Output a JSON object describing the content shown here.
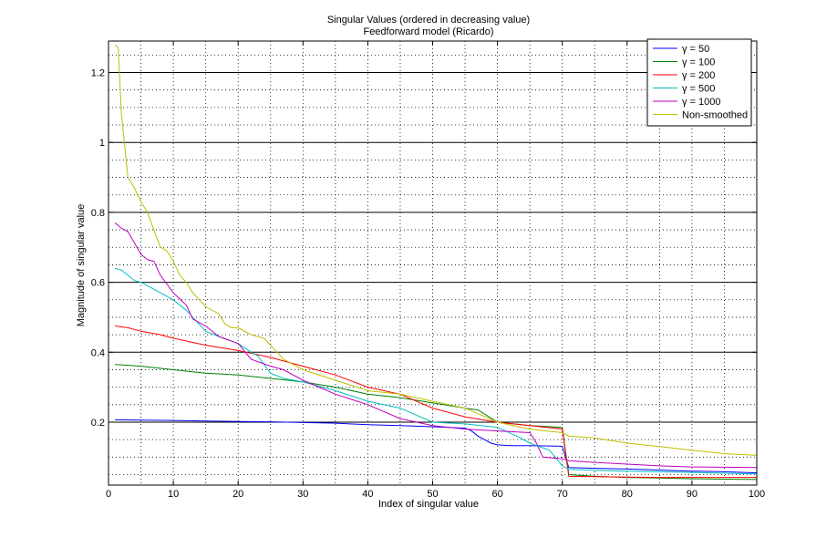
{
  "chart_data": {
    "type": "line",
    "title": "Singular Values (ordered in decreasing value)",
    "subtitle": "Feedforward model (Ricardo)",
    "xlabel": "Index of singular value",
    "ylabel": "Magnitude of singular value",
    "xlim": [
      0,
      100
    ],
    "ylim": [
      0.02,
      1.29
    ],
    "xticks": [
      0,
      10,
      20,
      30,
      40,
      50,
      60,
      70,
      80,
      90,
      100
    ],
    "yticks": [
      0.2,
      0.4,
      0.6,
      0.8,
      1,
      1.2
    ],
    "ytick_labels": [
      "0.2",
      "0.4",
      "0.6",
      "0.8",
      "1",
      "1.2"
    ],
    "grid": "major solid (y) and minor dotted",
    "legend_position": "top-right",
    "series": [
      {
        "name": "γ = 50",
        "color": "#0000ff",
        "x": [
          1,
          5,
          10,
          15,
          20,
          25,
          30,
          35,
          40,
          45,
          50,
          55,
          56,
          57,
          59,
          60,
          62,
          65,
          68,
          70,
          71,
          75,
          80,
          85,
          90,
          95,
          100
        ],
        "y": [
          0.207,
          0.206,
          0.205,
          0.203,
          0.202,
          0.201,
          0.199,
          0.197,
          0.193,
          0.19,
          0.187,
          0.183,
          0.175,
          0.16,
          0.14,
          0.135,
          0.133,
          0.133,
          0.132,
          0.131,
          0.07,
          0.068,
          0.066,
          0.063,
          0.06,
          0.058,
          0.055
        ]
      },
      {
        "name": "γ = 100",
        "color": "#008000",
        "x": [
          1,
          5,
          10,
          15,
          20,
          25,
          30,
          35,
          40,
          45,
          50,
          55,
          57,
          60,
          65,
          70,
          71,
          75,
          80,
          85,
          90,
          95,
          100
        ],
        "y": [
          0.365,
          0.36,
          0.35,
          0.34,
          0.335,
          0.325,
          0.315,
          0.3,
          0.28,
          0.27,
          0.255,
          0.24,
          0.235,
          0.2,
          0.19,
          0.185,
          0.05,
          0.045,
          0.042,
          0.04,
          0.038,
          0.037,
          0.036
        ]
      },
      {
        "name": "γ = 200",
        "color": "#ff0000",
        "x": [
          1,
          3,
          5,
          8,
          10,
          15,
          20,
          25,
          30,
          35,
          40,
          45,
          50,
          55,
          60,
          65,
          70,
          71,
          75,
          80,
          85,
          90,
          95,
          100
        ],
        "y": [
          0.475,
          0.47,
          0.46,
          0.45,
          0.44,
          0.42,
          0.405,
          0.385,
          0.36,
          0.335,
          0.3,
          0.28,
          0.24,
          0.215,
          0.2,
          0.19,
          0.18,
          0.045,
          0.044,
          0.043,
          0.042,
          0.042,
          0.042,
          0.042
        ]
      },
      {
        "name": "γ = 500",
        "color": "#00bfbf",
        "x": [
          1,
          2,
          3,
          4,
          5,
          8,
          10,
          12,
          13,
          15,
          17,
          20,
          22,
          23,
          25,
          27,
          30,
          35,
          40,
          45,
          50,
          55,
          60,
          63,
          65,
          68,
          70,
          71,
          75,
          80,
          85,
          90,
          95,
          100
        ],
        "y": [
          0.64,
          0.635,
          0.62,
          0.605,
          0.6,
          0.57,
          0.55,
          0.52,
          0.5,
          0.46,
          0.445,
          0.425,
          0.4,
          0.39,
          0.34,
          0.325,
          0.315,
          0.29,
          0.26,
          0.24,
          0.2,
          0.195,
          0.185,
          0.16,
          0.14,
          0.12,
          0.075,
          0.065,
          0.062,
          0.06,
          0.058,
          0.056,
          0.054,
          0.052
        ]
      },
      {
        "name": "γ = 1000",
        "color": "#bf00bf",
        "x": [
          1,
          2,
          3,
          5,
          6,
          7,
          8,
          10,
          12,
          13,
          15,
          17,
          20,
          22,
          25,
          27,
          30,
          35,
          40,
          45,
          50,
          55,
          60,
          65,
          66,
          67,
          70,
          71,
          75,
          80,
          85,
          90,
          95,
          100
        ],
        "y": [
          0.77,
          0.755,
          0.745,
          0.68,
          0.665,
          0.66,
          0.62,
          0.57,
          0.535,
          0.495,
          0.475,
          0.445,
          0.425,
          0.38,
          0.36,
          0.35,
          0.32,
          0.28,
          0.25,
          0.21,
          0.19,
          0.18,
          0.175,
          0.17,
          0.14,
          0.1,
          0.095,
          0.09,
          0.085,
          0.08,
          0.075,
          0.072,
          0.071,
          0.07
        ]
      },
      {
        "name": "Non-smoothed",
        "color": "#bfbf00",
        "x": [
          1,
          1.5,
          2,
          3,
          4,
          5,
          6,
          7,
          8,
          9,
          10,
          11,
          12,
          13,
          15,
          17,
          18,
          19,
          20,
          22,
          24,
          25,
          27,
          28,
          30,
          35,
          40,
          45,
          50,
          55,
          60,
          65,
          70,
          71,
          75,
          80,
          85,
          90,
          95,
          100
        ],
        "y": [
          1.28,
          1.27,
          1.08,
          0.9,
          0.87,
          0.83,
          0.8,
          0.75,
          0.7,
          0.69,
          0.66,
          0.62,
          0.6,
          0.57,
          0.53,
          0.51,
          0.48,
          0.47,
          0.47,
          0.45,
          0.44,
          0.42,
          0.38,
          0.37,
          0.35,
          0.32,
          0.29,
          0.28,
          0.26,
          0.24,
          0.2,
          0.18,
          0.17,
          0.16,
          0.155,
          0.14,
          0.13,
          0.12,
          0.11,
          0.105
        ]
      }
    ]
  }
}
